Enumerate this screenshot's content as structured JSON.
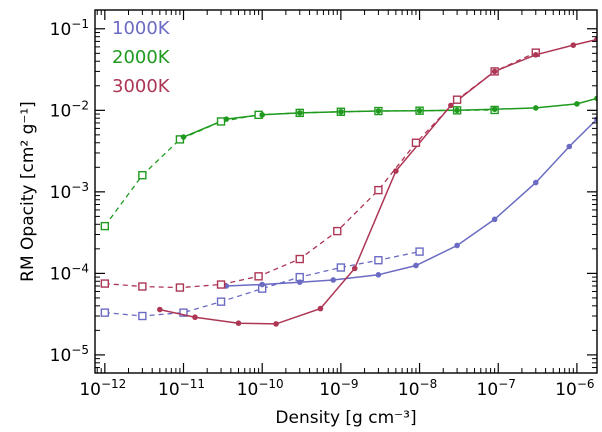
{
  "chart_data": {
    "type": "line",
    "title": "",
    "xlabel": "Density [g cm⁻³]",
    "ylabel": "RM Opacity [cm² g⁻¹]",
    "xscale": "log",
    "yscale": "log",
    "xlim": [
      7.5e-13,
      1.8e-06
    ],
    "ylim": [
      6e-06,
      0.17
    ],
    "xticks": [
      {
        "value": 1e-12,
        "base": "10",
        "exp": "−12"
      },
      {
        "value": 1e-11,
        "base": "10",
        "exp": "−11"
      },
      {
        "value": 1e-10,
        "base": "10",
        "exp": "−10"
      },
      {
        "value": 1e-09,
        "base": "10",
        "exp": "−9"
      },
      {
        "value": 1e-08,
        "base": "10",
        "exp": "−8"
      },
      {
        "value": 1e-07,
        "base": "10",
        "exp": "−7"
      },
      {
        "value": 1e-06,
        "base": "10",
        "exp": "−6"
      }
    ],
    "yticks": [
      {
        "value": 1e-05,
        "base": "10",
        "exp": "−5"
      },
      {
        "value": 0.0001,
        "base": "10",
        "exp": "−4"
      },
      {
        "value": 0.001,
        "base": "10",
        "exp": "−3"
      },
      {
        "value": 0.01,
        "base": "10",
        "exp": "−2"
      },
      {
        "value": 0.1,
        "base": "10",
        "exp": "−1"
      }
    ],
    "grid": false,
    "legend_position": "top-left",
    "series": [
      {
        "name": "1000K",
        "color": "#6b6bc4",
        "solid": {
          "x": [
            3.5e-11,
            1e-10,
            3e-10,
            8e-10,
            3e-09,
            9e-09,
            3e-08,
            9e-08,
            3e-07,
            8e-07,
            1.8e-06
          ],
          "y": [
            7e-05,
            7.3e-05,
            7.8e-05,
            8.3e-05,
            9.6e-05,
            0.000125,
            0.00022,
            0.00046,
            0.0013,
            0.0036,
            0.0078
          ]
        },
        "dashed": {
          "x": [
            1e-12,
            3e-12,
            1e-11,
            3e-11,
            1e-10,
            3e-10,
            1e-09,
            3e-09,
            1e-08
          ],
          "y": [
            3.3e-05,
            3e-05,
            3.3e-05,
            4.5e-05,
            6.5e-05,
            9e-05,
            0.000118,
            0.000145,
            0.000185
          ]
        }
      },
      {
        "name": "2000K",
        "color": "#1f9a1f",
        "solid": {
          "x": [
            1e-11,
            3.5e-11,
            1e-10,
            3e-10,
            1e-09,
            3e-09,
            1e-08,
            3e-08,
            9e-08,
            3e-07,
            1e-06,
            1.8e-06
          ],
          "y": [
            0.0047,
            0.0078,
            0.0088,
            0.0093,
            0.0096,
            0.0098,
            0.0099,
            0.01,
            0.0103,
            0.0107,
            0.012,
            0.014
          ]
        },
        "dashed": {
          "x": [
            1e-12,
            3e-12,
            9e-12,
            3e-11,
            9e-11,
            3e-10,
            1e-09,
            3e-09,
            1e-08,
            3e-08,
            9e-08
          ],
          "y": [
            0.00038,
            0.0016,
            0.0044,
            0.0073,
            0.0088,
            0.0093,
            0.0096,
            0.0098,
            0.0099,
            0.01,
            0.0101
          ]
        }
      },
      {
        "name": "3000K",
        "color": "#ad3655",
        "solid": {
          "x": [
            5e-12,
            1.4e-11,
            5e-11,
            1.5e-10,
            5.5e-10,
            1.5e-09,
            5e-09,
            2.5e-08,
            9e-08,
            3e-07,
            9e-07,
            1.8e-06
          ],
          "y": [
            3.6e-05,
            2.9e-05,
            2.45e-05,
            2.4e-05,
            3.7e-05,
            0.000115,
            0.0018,
            0.0115,
            0.03,
            0.048,
            0.063,
            0.074
          ]
        },
        "dashed": {
          "x": [
            1e-12,
            3e-12,
            9e-12,
            3e-11,
            9e-11,
            3e-10,
            9e-10,
            3e-09,
            9e-09,
            3e-08,
            9e-08,
            3e-07
          ],
          "y": [
            7.5e-05,
            6.9e-05,
            6.7e-05,
            7.3e-05,
            9.2e-05,
            0.00015,
            0.00033,
            0.00105,
            0.004,
            0.0135,
            0.03,
            0.051
          ]
        }
      }
    ]
  }
}
